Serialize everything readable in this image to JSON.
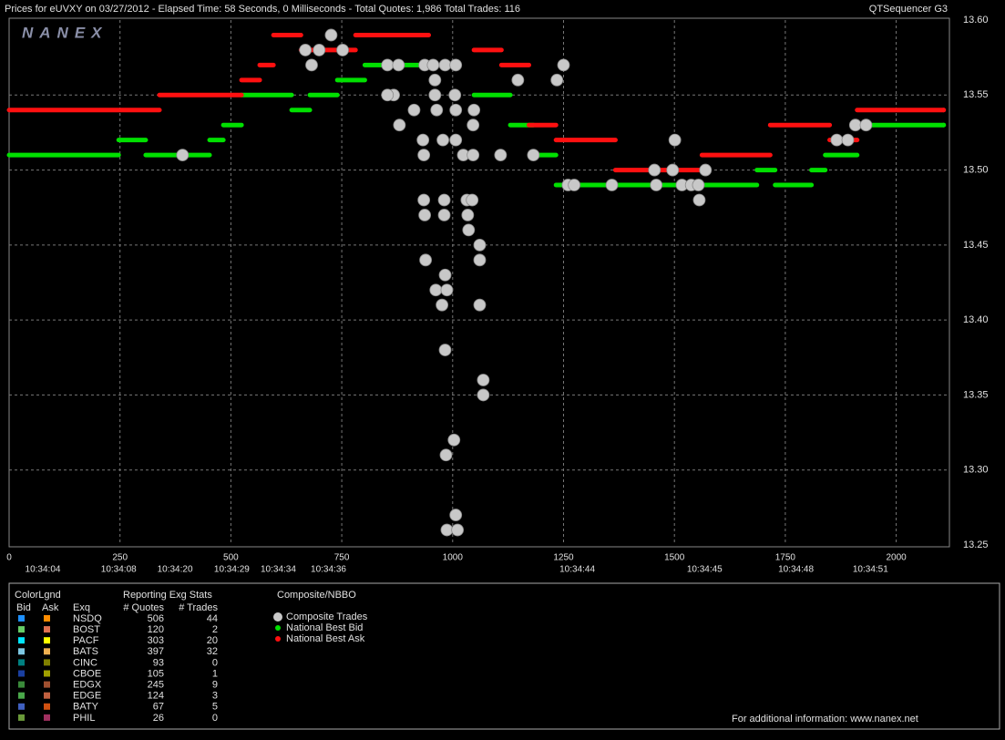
{
  "header": {
    "title": "Prices for  eUVXY  on  03/27/2012  -  Elapsed Time: 58 Seconds, 0 Milliseconds  -  Total Quotes: 1,986  Total Trades: 116",
    "app": "QTSequencer G3",
    "logo": "NANEX"
  },
  "chart_data": {
    "type": "scatter",
    "xlim": [
      0,
      2120
    ],
    "xticks": [
      0,
      250,
      500,
      750,
      1000,
      1250,
      1500,
      1750,
      2000
    ],
    "time_ticks": [
      {
        "value": 76,
        "label": "10:34:04"
      },
      {
        "value": 247,
        "label": "10:34:08"
      },
      {
        "value": 374,
        "label": "10:34:20"
      },
      {
        "value": 502,
        "label": "10:34:29"
      },
      {
        "value": 607,
        "label": "10:34:34"
      },
      {
        "value": 720,
        "label": "10:34:36"
      },
      {
        "value": 1281,
        "label": "10:34:44"
      },
      {
        "value": 1568,
        "label": "10:34:45"
      },
      {
        "value": 1774,
        "label": "10:34:48"
      },
      {
        "value": 1942,
        "label": "10:34:51"
      }
    ],
    "ylim": [
      13.25,
      13.6
    ],
    "yticks": [
      {
        "value": 13.25,
        "label": "13.25"
      },
      {
        "value": 13.3,
        "label": "13.30"
      },
      {
        "value": 13.35,
        "label": "13.35"
      },
      {
        "value": 13.4,
        "label": "13.40"
      },
      {
        "value": 13.45,
        "label": "13.45"
      },
      {
        "value": 13.5,
        "label": "13.50"
      },
      {
        "value": 13.55,
        "label": "13.55"
      },
      {
        "value": 13.6,
        "label": "13.60"
      }
    ],
    "grid": true,
    "series": [
      {
        "name": "Composite Trades",
        "color": "#c8c8c8",
        "style": "points",
        "x": [
          391,
          668,
          682,
          699,
          726,
          752,
          853,
          878,
          867,
          853,
          880,
          913,
          937,
          956,
          983,
          1007,
          960,
          960,
          1005,
          964,
          1007,
          1048,
          933,
          935,
          978,
          1007,
          1046,
          1024,
          1046,
          1108,
          1182,
          1147,
          1235,
          1250,
          1260,
          1274,
          1359,
          1459,
          1455,
          1501,
          1496,
          1517,
          1538,
          1554,
          1556,
          1570,
          1866,
          1891,
          1908,
          1932,
          935,
          981,
          937,
          981,
          1032,
          1044,
          1034,
          1036,
          1061,
          1061,
          939,
          983,
          962,
          987,
          976,
          1061,
          983,
          1069,
          1069,
          1003,
          985,
          1007,
          987,
          1011
        ],
        "values": [
          13.51,
          13.58,
          13.57,
          13.58,
          13.59,
          13.58,
          13.57,
          13.57,
          13.55,
          13.55,
          13.53,
          13.54,
          13.57,
          13.57,
          13.57,
          13.57,
          13.56,
          13.55,
          13.55,
          13.54,
          13.54,
          13.54,
          13.52,
          13.51,
          13.52,
          13.52,
          13.53,
          13.51,
          13.51,
          13.51,
          13.51,
          13.56,
          13.56,
          13.57,
          13.49,
          13.49,
          13.49,
          13.49,
          13.5,
          13.52,
          13.5,
          13.49,
          13.49,
          13.49,
          13.48,
          13.5,
          13.52,
          13.52,
          13.53,
          13.53,
          13.48,
          13.48,
          13.47,
          13.47,
          13.48,
          13.48,
          13.47,
          13.46,
          13.45,
          13.44,
          13.44,
          13.43,
          13.42,
          13.42,
          13.41,
          13.41,
          13.38,
          13.36,
          13.35,
          13.32,
          13.31,
          13.27,
          13.26,
          13.26
        ]
      },
      {
        "name": "National Best Bid",
        "color": "#00e000",
        "style": "steps",
        "x": [
          0,
          247,
          308,
          452,
          483,
          524,
          637,
          678,
          740,
          802,
          935,
          1048,
          1130,
          1182,
          1233,
          1686,
          1727,
          1809,
          1840,
          1912,
          2107
        ],
        "values": [
          13.51,
          13.52,
          13.51,
          13.52,
          13.53,
          13.55,
          13.54,
          13.55,
          13.56,
          13.57,
          null,
          13.55,
          13.53,
          13.51,
          13.49,
          13.5,
          13.49,
          13.5,
          13.51,
          13.53,
          13.53
        ]
      },
      {
        "name": "National Best Ask",
        "color": "#ff1010",
        "style": "steps",
        "x": [
          0,
          339,
          524,
          565,
          596,
          658,
          781,
          946,
          1048,
          1110,
          1172,
          1233,
          1367,
          1562,
          1716,
          1850,
          1912,
          2107
        ],
        "values": [
          13.54,
          13.55,
          13.56,
          13.57,
          13.59,
          13.58,
          13.59,
          null,
          13.58,
          13.57,
          13.53,
          13.52,
          13.5,
          13.51,
          13.53,
          13.52,
          13.54,
          13.54
        ]
      }
    ]
  },
  "legend_table": {
    "title": "ColorLgnd",
    "stats_title": "Reporting Exg Stats",
    "bid": "Bid",
    "ask": "Ask",
    "exchange": "Exq",
    "quotes": "# Quotes",
    "trades": "# Trades",
    "composite_title": "Composite/NBBO",
    "rows": [
      {
        "exchange": "NSDQ",
        "bid_color": "#1e90ff",
        "ask_color": "#ff8c00",
        "quotes": 506,
        "trades": 44
      },
      {
        "exchange": "BOST",
        "bid_color": "#66cc66",
        "ask_color": "#e07050",
        "quotes": 120,
        "trades": 2
      },
      {
        "exchange": "PACF",
        "bid_color": "#00e5ff",
        "ask_color": "#ffff00",
        "quotes": 303,
        "trades": 20
      },
      {
        "exchange": "BATS",
        "bid_color": "#7ec8e3",
        "ask_color": "#f0b050",
        "quotes": 397,
        "trades": 32
      },
      {
        "exchange": "CINC",
        "bid_color": "#008080",
        "ask_color": "#808000",
        "quotes": 93,
        "trades": 0
      },
      {
        "exchange": "CBOE",
        "bid_color": "#1a3fa0",
        "ask_color": "#a0a000",
        "quotes": 105,
        "trades": 1
      },
      {
        "exchange": "EDGX",
        "bid_color": "#3a8a3a",
        "ask_color": "#a05030",
        "quotes": 245,
        "trades": 9
      },
      {
        "exchange": "EDGE",
        "bid_color": "#4aa84a",
        "ask_color": "#c06040",
        "quotes": 124,
        "trades": 3
      },
      {
        "exchange": "BATY",
        "bid_color": "#4060c0",
        "ask_color": "#d05010",
        "quotes": 67,
        "trades": 5
      },
      {
        "exchange": "PHIL",
        "bid_color": "#6a9a3a",
        "ask_color": "#a03060",
        "quotes": 26,
        "trades": 0
      }
    ]
  },
  "footer": "For additional information: www.nanex.net"
}
